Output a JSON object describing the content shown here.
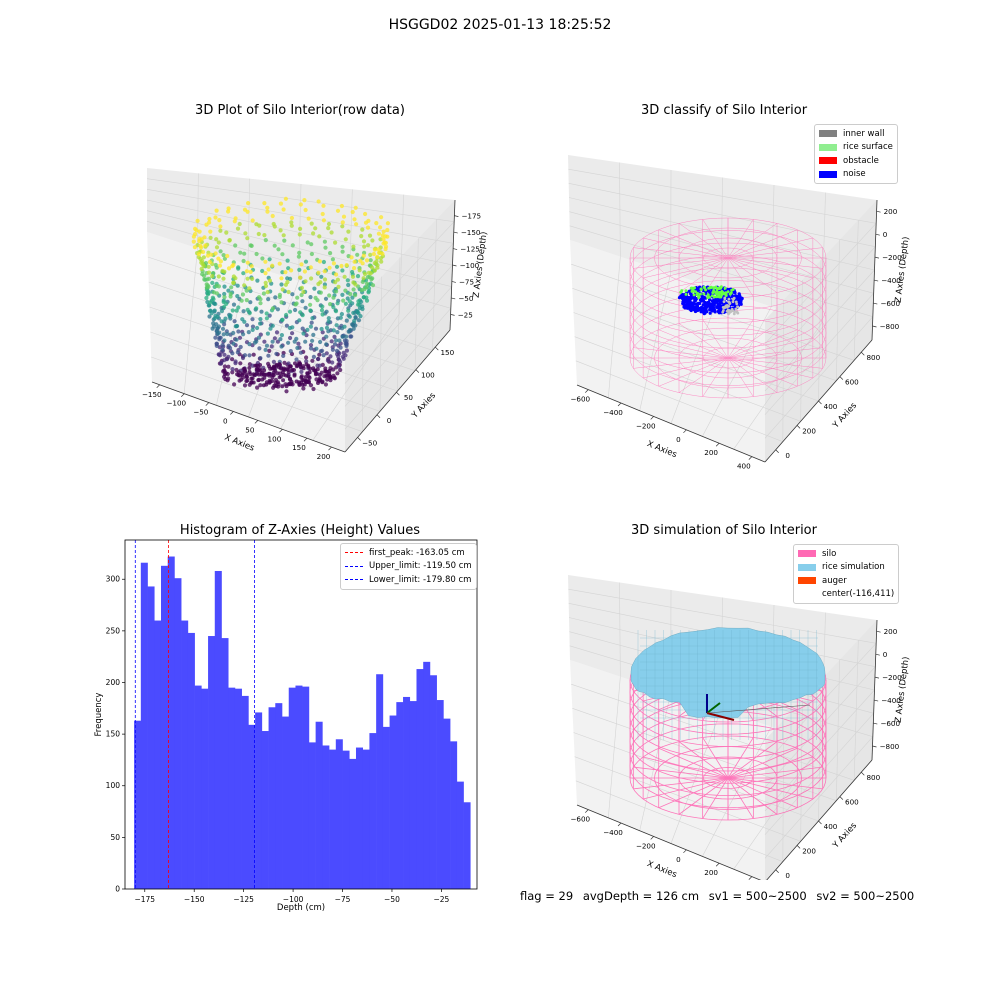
{
  "figure": {
    "suptitle": "HSGGD02 2025-01-13 18:25:52"
  },
  "panels": {
    "raw": {
      "title": "3D Plot of Silo Interior(row data)",
      "xlabel": "X Axies",
      "ylabel": "Y Axies",
      "zlabel": "Z Axies (Depth)",
      "xticks": [
        "−150",
        "−100",
        "−50",
        "0",
        "50",
        "100",
        "150",
        "200"
      ],
      "yticks": [
        "−50",
        "0",
        "50",
        "100",
        "150"
      ],
      "zticks": [
        "−25",
        "−50",
        "−75",
        "−100",
        "−125",
        "−150",
        "−175"
      ]
    },
    "classify": {
      "title": "3D classify of Silo Interior",
      "xlabel": "X Axies",
      "ylabel": "Y Axies",
      "zlabel": "Z Axies (Depth)",
      "xticks": [
        "−600",
        "−400",
        "−200",
        "0",
        "200",
        "400"
      ],
      "yticks": [
        "0",
        "200",
        "400",
        "600",
        "800"
      ],
      "zticks": [
        "200",
        "0",
        "−200",
        "−400",
        "−600",
        "−800"
      ],
      "legend": [
        {
          "label": "inner wall",
          "color": "#808080"
        },
        {
          "label": "rice surface",
          "color": "#90ee90"
        },
        {
          "label": "obstacle",
          "color": "#ff0000"
        },
        {
          "label": "noise",
          "color": "#0000ff"
        }
      ]
    },
    "simulation": {
      "title": "3D simulation of Silo Interior",
      "xlabel": "X Axies",
      "ylabel": "Y Axies",
      "zlabel": "Z Axies (Depth)",
      "xticks": [
        "−600",
        "−400",
        "−200",
        "0",
        "200",
        "400"
      ],
      "yticks": [
        "0",
        "200",
        "400",
        "600",
        "800"
      ],
      "zticks": [
        "200",
        "0",
        "−200",
        "−400",
        "−600",
        "−800"
      ],
      "legend": [
        {
          "label": "silo",
          "color": "#ff69b4"
        },
        {
          "label": "rice simulation",
          "color": "#87ceeb"
        },
        {
          "label": "auger",
          "color": "#ff4500"
        },
        {
          "label": "center(-116,411)",
          "color": ""
        }
      ]
    }
  },
  "footer": {
    "flag": "flag = 29",
    "avg_depth": "avgDepth = 126 cm",
    "sv1": "sv1 = 500~2500",
    "sv2": "sv2 = 500~2500"
  },
  "chart_data": [
    {
      "type": "histogram",
      "title": "Histogram of Z-Axies (Height) Values",
      "xlabel": "Depth (cm)",
      "ylabel": "Frequency",
      "xlim": [
        -185,
        -7
      ],
      "ylim": [
        0,
        338
      ],
      "xticks": [
        -175,
        -150,
        -125,
        -100,
        -75,
        -50,
        -25
      ],
      "yticks": [
        0,
        50,
        100,
        150,
        200,
        250,
        300
      ],
      "bin_start": -180.4,
      "bin_width": 3.4,
      "bar_color": "#4b4bff",
      "values": [
        163,
        316,
        293,
        260,
        313,
        322,
        301,
        260,
        248,
        197,
        194,
        245,
        308,
        243,
        195,
        194,
        187,
        159,
        171,
        153,
        176,
        180,
        167,
        195,
        197,
        196,
        142,
        162,
        139,
        135,
        145,
        134,
        126,
        137,
        135,
        151,
        208,
        157,
        168,
        181,
        186,
        182,
        213,
        220,
        207,
        183,
        165,
        143,
        104,
        84
      ],
      "vlines": [
        {
          "label": "first_peak: -163.05 cm",
          "x": -163.05,
          "color": "#ff0000"
        },
        {
          "label": "Upper_limit: -119.50 cm",
          "x": -119.5,
          "color": "#0000ff"
        },
        {
          "label": "Lower_limit: -179.80 cm",
          "x": -179.8,
          "color": "#0000ff"
        }
      ],
      "legend_position": "upper right"
    }
  ]
}
